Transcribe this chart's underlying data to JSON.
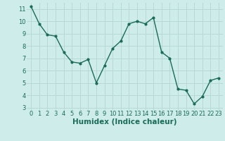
{
  "x": [
    0,
    1,
    2,
    3,
    4,
    5,
    6,
    7,
    8,
    9,
    10,
    11,
    12,
    13,
    14,
    15,
    16,
    17,
    18,
    19,
    20,
    21,
    22,
    23
  ],
  "y": [
    11.2,
    9.8,
    8.9,
    8.8,
    7.5,
    6.7,
    6.6,
    6.9,
    5.0,
    6.4,
    7.8,
    8.4,
    9.8,
    10.0,
    9.8,
    10.3,
    7.5,
    7.0,
    4.5,
    4.4,
    3.3,
    3.9,
    5.2,
    5.4
  ],
  "line_color": "#1a6b5a",
  "marker": "o",
  "markersize": 2.0,
  "linewidth": 1.0,
  "xlabel": "Humidex (Indice chaleur)",
  "xlim": [
    -0.5,
    23.5
  ],
  "ylim": [
    2.8,
    11.5
  ],
  "yticks": [
    3,
    4,
    5,
    6,
    7,
    8,
    9,
    10,
    11
  ],
  "xticks": [
    0,
    1,
    2,
    3,
    4,
    5,
    6,
    7,
    8,
    9,
    10,
    11,
    12,
    13,
    14,
    15,
    16,
    17,
    18,
    19,
    20,
    21,
    22,
    23
  ],
  "bg_color": "#cdecea",
  "grid_color": "#b8d8d5",
  "tick_fontsize": 6,
  "xlabel_fontsize": 7.5
}
